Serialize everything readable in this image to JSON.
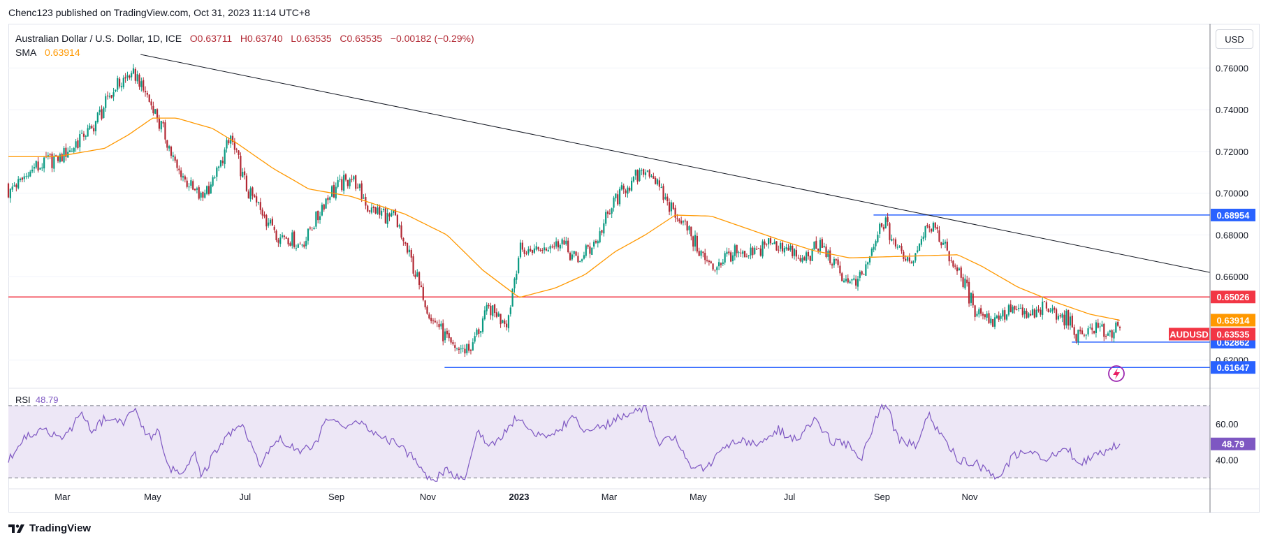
{
  "publisher_line": "Chenc123 published on TradingView.com, Oct 31, 2023 11:14 UTC+8",
  "legend": {
    "symbol": "Australian Dollar / U.S. Dollar, 1D, ICE",
    "open": "O0.63711",
    "high": "H0.63740",
    "low": "L0.63535",
    "close": "C0.63535",
    "change": "−0.00182 (−0.29%)",
    "sma_label": "SMA",
    "sma_value": "0.63914"
  },
  "currency_button": "USD",
  "brand": "TradingView",
  "colors": {
    "up": "#089981",
    "down": "#b22833",
    "sma": "#ff9800",
    "trendline": "#131722",
    "resistance": "#f23645",
    "support": "#2962ff",
    "rsi_line": "#7e57c2",
    "rsi_band": "#ede7f6"
  },
  "chart_data": [
    {
      "type": "candlestick",
      "ylim": [
        0.6085,
        0.7675
      ],
      "y_ticks": [
        "0.76000",
        "0.74000",
        "0.72000",
        "0.70000",
        "0.68000",
        "0.66000",
        "0.62000"
      ],
      "x_ticks": [
        "Mar",
        "May",
        "Jul",
        "Sep",
        "Nov",
        "2023",
        "Mar",
        "May",
        "Jul",
        "Sep",
        "Nov"
      ],
      "trendline": {
        "from": [
          0.11,
          0.7665
        ],
        "to": [
          1.0,
          0.662
        ]
      },
      "levels": [
        {
          "label": "0.68954",
          "value": 0.68954,
          "color": "#2962ff",
          "x_from": 0.72
        },
        {
          "label": "0.65026",
          "value": 0.65026,
          "color": "#f23645",
          "x_from": 0.0
        },
        {
          "label": "0.62862",
          "value": 0.62862,
          "color": "#2962ff",
          "x_from": 0.885
        },
        {
          "label": "0.61647",
          "value": 0.61647,
          "color": "#2962ff",
          "x_from": 0.363
        }
      ],
      "price_tags": [
        {
          "label": "0.63914",
          "value": 0.63914,
          "color": "#ff9800"
        },
        {
          "label": "0.63535",
          "value": 0.63535,
          "color": "#f23645",
          "symbol": "AUDUSD"
        }
      ],
      "anchors": [
        [
          0.0,
          0.701
        ],
        [
          0.02,
          0.712
        ],
        [
          0.045,
          0.718
        ],
        [
          0.07,
          0.732
        ],
        [
          0.09,
          0.752
        ],
        [
          0.105,
          0.757
        ],
        [
          0.12,
          0.742
        ],
        [
          0.14,
          0.713
        ],
        [
          0.16,
          0.697
        ],
        [
          0.17,
          0.706
        ],
        [
          0.185,
          0.727
        ],
        [
          0.2,
          0.7
        ],
        [
          0.225,
          0.68
        ],
        [
          0.245,
          0.675
        ],
        [
          0.265,
          0.698
        ],
        [
          0.285,
          0.708
        ],
        [
          0.3,
          0.692
        ],
        [
          0.32,
          0.689
        ],
        [
          0.335,
          0.668
        ],
        [
          0.35,
          0.643
        ],
        [
          0.37,
          0.625
        ],
        [
          0.385,
          0.626
        ],
        [
          0.4,
          0.645
        ],
        [
          0.415,
          0.638
        ],
        [
          0.425,
          0.672
        ],
        [
          0.44,
          0.673
        ],
        [
          0.46,
          0.677
        ],
        [
          0.475,
          0.667
        ],
        [
          0.49,
          0.678
        ],
        [
          0.505,
          0.697
        ],
        [
          0.52,
          0.706
        ],
        [
          0.532,
          0.712
        ],
        [
          0.545,
          0.698
        ],
        [
          0.56,
          0.687
        ],
        [
          0.575,
          0.673
        ],
        [
          0.585,
          0.663
        ],
        [
          0.6,
          0.672
        ],
        [
          0.615,
          0.668
        ],
        [
          0.63,
          0.676
        ],
        [
          0.645,
          0.675
        ],
        [
          0.66,
          0.668
        ],
        [
          0.675,
          0.675
        ],
        [
          0.69,
          0.663
        ],
        [
          0.705,
          0.655
        ],
        [
          0.715,
          0.666
        ],
        [
          0.728,
          0.687
        ],
        [
          0.74,
          0.673
        ],
        [
          0.752,
          0.668
        ],
        [
          0.765,
          0.687
        ],
        [
          0.778,
          0.676
        ],
        [
          0.79,
          0.663
        ],
        [
          0.805,
          0.644
        ],
        [
          0.82,
          0.639
        ],
        [
          0.835,
          0.645
        ],
        [
          0.85,
          0.641
        ],
        [
          0.865,
          0.645
        ],
        [
          0.88,
          0.64
        ],
        [
          0.89,
          0.632
        ],
        [
          0.905,
          0.636
        ],
        [
          0.915,
          0.633
        ],
        [
          0.925,
          0.6353
        ]
      ],
      "sma": {
        "name": "SMA",
        "anchors": [
          [
            0.0,
            0.7175
          ],
          [
            0.04,
            0.7175
          ],
          [
            0.08,
            0.7215
          ],
          [
            0.1,
            0.728
          ],
          [
            0.12,
            0.736
          ],
          [
            0.14,
            0.736
          ],
          [
            0.17,
            0.731
          ],
          [
            0.19,
            0.724
          ],
          [
            0.22,
            0.712
          ],
          [
            0.25,
            0.702
          ],
          [
            0.285,
            0.6985
          ],
          [
            0.33,
            0.69
          ],
          [
            0.365,
            0.68
          ],
          [
            0.395,
            0.663
          ],
          [
            0.425,
            0.65
          ],
          [
            0.455,
            0.6545
          ],
          [
            0.48,
            0.661
          ],
          [
            0.505,
            0.672
          ],
          [
            0.53,
            0.68
          ],
          [
            0.555,
            0.6895
          ],
          [
            0.585,
            0.689
          ],
          [
            0.61,
            0.684
          ],
          [
            0.64,
            0.678
          ],
          [
            0.67,
            0.6725
          ],
          [
            0.7,
            0.669
          ],
          [
            0.73,
            0.6695
          ],
          [
            0.76,
            0.67
          ],
          [
            0.79,
            0.6705
          ],
          [
            0.81,
            0.665
          ],
          [
            0.84,
            0.655
          ],
          [
            0.87,
            0.648
          ],
          [
            0.9,
            0.642
          ],
          [
            0.925,
            0.6391
          ]
        ]
      }
    },
    {
      "type": "line",
      "name": "RSI",
      "value_label": "48.79",
      "ylim": [
        27,
        75
      ],
      "band": [
        30,
        70
      ],
      "y_ticks": [
        "60.00",
        "40.00"
      ],
      "last_value": 48.79,
      "anchors": [
        [
          0.0,
          40
        ],
        [
          0.015,
          53
        ],
        [
          0.03,
          58
        ],
        [
          0.045,
          50
        ],
        [
          0.06,
          66
        ],
        [
          0.07,
          55
        ],
        [
          0.08,
          63
        ],
        [
          0.095,
          60
        ],
        [
          0.105,
          70
        ],
        [
          0.115,
          52
        ],
        [
          0.125,
          55
        ],
        [
          0.135,
          35
        ],
        [
          0.145,
          32
        ],
        [
          0.155,
          45
        ],
        [
          0.16,
          30
        ],
        [
          0.175,
          48
        ],
        [
          0.195,
          60
        ],
        [
          0.21,
          37
        ],
        [
          0.225,
          52
        ],
        [
          0.24,
          45
        ],
        [
          0.255,
          48
        ],
        [
          0.265,
          64
        ],
        [
          0.28,
          57
        ],
        [
          0.29,
          62
        ],
        [
          0.305,
          54
        ],
        [
          0.32,
          50
        ],
        [
          0.335,
          42
        ],
        [
          0.345,
          33
        ],
        [
          0.355,
          29
        ],
        [
          0.365,
          35
        ],
        [
          0.38,
          28
        ],
        [
          0.39,
          56
        ],
        [
          0.4,
          48
        ],
        [
          0.41,
          52
        ],
        [
          0.425,
          65
        ],
        [
          0.435,
          55
        ],
        [
          0.45,
          52
        ],
        [
          0.47,
          64
        ],
        [
          0.48,
          56
        ],
        [
          0.495,
          58
        ],
        [
          0.505,
          63
        ],
        [
          0.52,
          66
        ],
        [
          0.53,
          70
        ],
        [
          0.54,
          49
        ],
        [
          0.555,
          52
        ],
        [
          0.565,
          38
        ],
        [
          0.58,
          34
        ],
        [
          0.595,
          48
        ],
        [
          0.61,
          50
        ],
        [
          0.625,
          50
        ],
        [
          0.64,
          57
        ],
        [
          0.655,
          51
        ],
        [
          0.67,
          62
        ],
        [
          0.685,
          50
        ],
        [
          0.7,
          48
        ],
        [
          0.71,
          41
        ],
        [
          0.72,
          60
        ],
        [
          0.73,
          72
        ],
        [
          0.74,
          52
        ],
        [
          0.755,
          48
        ],
        [
          0.765,
          66
        ],
        [
          0.775,
          55
        ],
        [
          0.79,
          40
        ],
        [
          0.805,
          38
        ],
        [
          0.815,
          33
        ],
        [
          0.825,
          29
        ],
        [
          0.835,
          42
        ],
        [
          0.85,
          45
        ],
        [
          0.865,
          40
        ],
        [
          0.88,
          48
        ],
        [
          0.89,
          38
        ],
        [
          0.905,
          42
        ],
        [
          0.915,
          46
        ],
        [
          0.925,
          48.79
        ]
      ]
    }
  ]
}
